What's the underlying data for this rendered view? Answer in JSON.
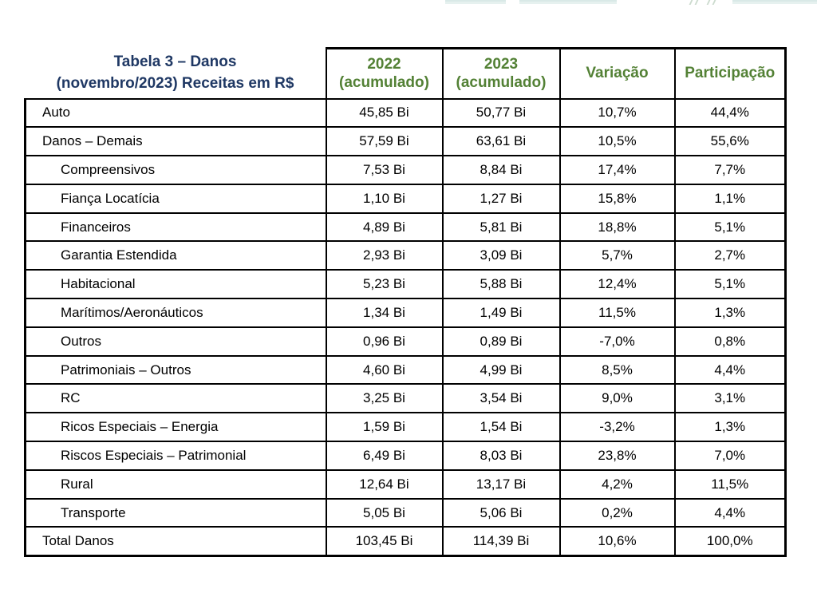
{
  "page": {
    "background": "#ffffff"
  },
  "top_fragments": {
    "description": "cropped teal button remnants at top edge",
    "fill_color": "#e6f1ef",
    "edge_color": "#d9e9e7"
  },
  "table": {
    "title": {
      "line1": "Tabela 3 – Danos",
      "line2": "(novembro/2023) Receitas em R$"
    },
    "headers": [
      {
        "line1": "2022",
        "line2": "(acumulado)"
      },
      {
        "line1": "2023",
        "line2": "(acumulado)"
      },
      {
        "line1": "Variação",
        "line2": ""
      },
      {
        "line1": "Participação",
        "line2": ""
      }
    ],
    "rows": [
      {
        "label": "Auto",
        "indent": false,
        "y2022": "45,85 Bi",
        "y2023": "50,77 Bi",
        "variation": "10,7%",
        "share": "44,4%"
      },
      {
        "label": "Danos – Demais",
        "indent": false,
        "y2022": "57,59 Bi",
        "y2023": "63,61 Bi",
        "variation": "10,5%",
        "share": "55,6%"
      },
      {
        "label": "Compreensivos",
        "indent": true,
        "y2022": "7,53 Bi",
        "y2023": "8,84 Bi",
        "variation": "17,4%",
        "share": "7,7%"
      },
      {
        "label": "Fiança Locatícia",
        "indent": true,
        "y2022": "1,10 Bi",
        "y2023": "1,27 Bi",
        "variation": "15,8%",
        "share": "1,1%"
      },
      {
        "label": "Financeiros",
        "indent": true,
        "y2022": "4,89 Bi",
        "y2023": "5,81 Bi",
        "variation": "18,8%",
        "share": "5,1%"
      },
      {
        "label": "Garantia Estendida",
        "indent": true,
        "y2022": "2,93 Bi",
        "y2023": "3,09 Bi",
        "variation": "5,7%",
        "share": "2,7%"
      },
      {
        "label": "Habitacional",
        "indent": true,
        "y2022": "5,23 Bi",
        "y2023": "5,88 Bi",
        "variation": "12,4%",
        "share": "5,1%"
      },
      {
        "label": "Marítimos/Aeronáuticos",
        "indent": true,
        "y2022": "1,34 Bi",
        "y2023": "1,49 Bi",
        "variation": "11,5%",
        "share": "1,3%"
      },
      {
        "label": "Outros",
        "indent": true,
        "y2022": "0,96 Bi",
        "y2023": "0,89 Bi",
        "variation": "-7,0%",
        "share": "0,8%"
      },
      {
        "label": "Patrimoniais – Outros",
        "indent": true,
        "y2022": "4,60 Bi",
        "y2023": "4,99 Bi",
        "variation": "8,5%",
        "share": "4,4%"
      },
      {
        "label": "RC",
        "indent": true,
        "y2022": "3,25 Bi",
        "y2023": "3,54 Bi",
        "variation": "9,0%",
        "share": "3,1%"
      },
      {
        "label": "Ricos Especiais – Energia",
        "indent": true,
        "y2022": "1,59 Bi",
        "y2023": "1,54 Bi",
        "variation": "-3,2%",
        "share": "1,3%"
      },
      {
        "label": "Riscos Especiais – Patrimonial",
        "indent": true,
        "y2022": "6,49 Bi",
        "y2023": "8,03 Bi",
        "variation": "23,8%",
        "share": "7,0%"
      },
      {
        "label": "Rural",
        "indent": true,
        "y2022": "12,64 Bi",
        "y2023": "13,17 Bi",
        "variation": "4,2%",
        "share": "11,5%"
      },
      {
        "label": "Transporte",
        "indent": true,
        "y2022": "5,05 Bi",
        "y2023": "5,06 Bi",
        "variation": "0,2%",
        "share": "4,4%"
      },
      {
        "label": "Total Danos",
        "indent": false,
        "y2022": "103,45 Bi",
        "y2023": "114,39 Bi",
        "variation": "10,6%",
        "share": "100,0%"
      }
    ],
    "colors": {
      "title_navy": "#1F3864",
      "header_green": "#538135",
      "border": "#000000",
      "text": "#000000"
    }
  }
}
